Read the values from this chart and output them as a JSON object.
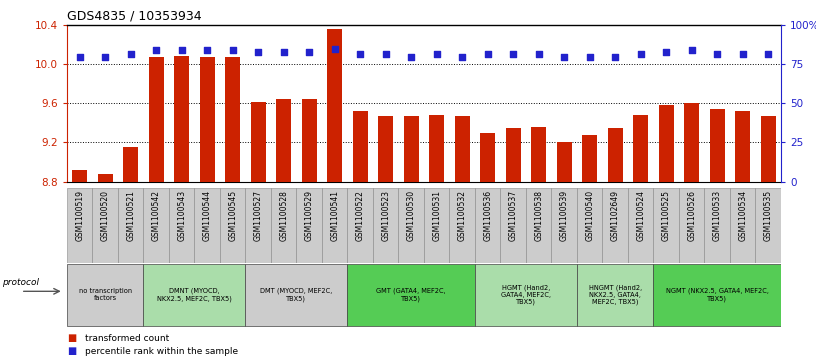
{
  "title": "GDS4835 / 10353934",
  "samples": [
    "GSM1100519",
    "GSM1100520",
    "GSM1100521",
    "GSM1100542",
    "GSM1100543",
    "GSM1100544",
    "GSM1100545",
    "GSM1100527",
    "GSM1100528",
    "GSM1100529",
    "GSM1100541",
    "GSM1100522",
    "GSM1100523",
    "GSM1100530",
    "GSM1100531",
    "GSM1100532",
    "GSM1100536",
    "GSM1100537",
    "GSM1100538",
    "GSM1100539",
    "GSM1100540",
    "GSM1102649",
    "GSM1100524",
    "GSM1100525",
    "GSM1100526",
    "GSM1100533",
    "GSM1100534",
    "GSM1100535"
  ],
  "bar_values": [
    8.92,
    8.88,
    9.15,
    10.08,
    10.09,
    10.08,
    10.08,
    9.62,
    9.65,
    9.65,
    10.36,
    9.52,
    9.47,
    9.47,
    9.48,
    9.47,
    9.3,
    9.35,
    9.36,
    9.2,
    9.28,
    9.35,
    9.48,
    9.58,
    9.6,
    9.54,
    9.52,
    9.47
  ],
  "percentile_values": [
    80,
    80,
    82,
    84,
    84,
    84,
    84,
    83,
    83,
    83,
    85,
    82,
    82,
    80,
    82,
    80,
    82,
    82,
    82,
    80,
    80,
    80,
    82,
    83,
    84,
    82,
    82,
    82
  ],
  "bar_color": "#cc2200",
  "dot_color": "#2222cc",
  "ylim_left": [
    8.8,
    10.4
  ],
  "ylim_right": [
    0,
    100
  ],
  "yticks_left": [
    8.8,
    9.2,
    9.6,
    10.0,
    10.4
  ],
  "yticks_right": [
    0,
    25,
    50,
    75,
    100
  ],
  "ytick_labels_right": [
    "0",
    "25",
    "50",
    "75",
    "100%"
  ],
  "grid_values": [
    9.2,
    9.6,
    10.0
  ],
  "protocols": [
    {
      "label": "no transcription\nfactors",
      "start": 0,
      "end": 3,
      "color": "#cccccc"
    },
    {
      "label": "DMNT (MYOCD,\nNKX2.5, MEF2C, TBX5)",
      "start": 3,
      "end": 7,
      "color": "#aaddaa"
    },
    {
      "label": "DMT (MYOCD, MEF2C,\nTBX5)",
      "start": 7,
      "end": 11,
      "color": "#cccccc"
    },
    {
      "label": "GMT (GATA4, MEF2C,\nTBX5)",
      "start": 11,
      "end": 16,
      "color": "#55cc55"
    },
    {
      "label": "HGMT (Hand2,\nGATA4, MEF2C,\nTBX5)",
      "start": 16,
      "end": 20,
      "color": "#aaddaa"
    },
    {
      "label": "HNGMT (Hand2,\nNKX2.5, GATA4,\nMEF2C, TBX5)",
      "start": 20,
      "end": 23,
      "color": "#aaddaa"
    },
    {
      "label": "NGMT (NKX2.5, GATA4, MEF2C,\nTBX5)",
      "start": 23,
      "end": 28,
      "color": "#55cc55"
    }
  ],
  "legend_items": [
    {
      "label": "transformed count",
      "color": "#cc2200"
    },
    {
      "label": "percentile rank within the sample",
      "color": "#2222cc"
    }
  ],
  "sample_box_color": "#cccccc",
  "fig_width": 8.16,
  "fig_height": 3.63,
  "dpi": 100
}
